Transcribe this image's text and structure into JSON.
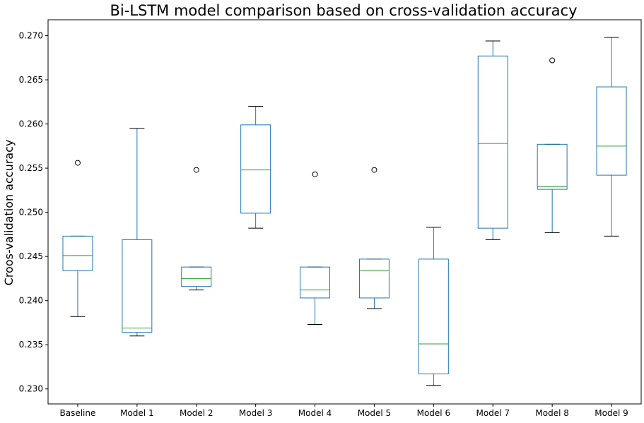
{
  "chart_data": {
    "type": "box",
    "title": "Bi-LSTM model comparison based on cross-validation accuracy",
    "xlabel": "",
    "ylabel": "Croos-validation accuracy",
    "ylim": [
      0.2283,
      0.2718
    ],
    "yticks": [
      "0.230",
      "0.235",
      "0.240",
      "0.245",
      "0.250",
      "0.255",
      "0.260",
      "0.265",
      "0.270"
    ],
    "categories": [
      "Baseline",
      "Model 1",
      "Model 2",
      "Model 3",
      "Model 4",
      "Model 5",
      "Model 6",
      "Model 7",
      "Model 8",
      "Model 9"
    ],
    "boxes": [
      {
        "whisker_low": 0.2382,
        "q1": 0.2434,
        "median": 0.2451,
        "q3": 0.2473,
        "whisker_high": 0.2473,
        "outliers": [
          0.2556
        ]
      },
      {
        "whisker_low": 0.236,
        "q1": 0.2364,
        "median": 0.2369,
        "q3": 0.2469,
        "whisker_high": 0.2595,
        "outliers": []
      },
      {
        "whisker_low": 0.2412,
        "q1": 0.2416,
        "median": 0.2425,
        "q3": 0.2438,
        "whisker_high": 0.2438,
        "outliers": [
          0.2548
        ]
      },
      {
        "whisker_low": 0.2482,
        "q1": 0.2499,
        "median": 0.2548,
        "q3": 0.2599,
        "whisker_high": 0.262,
        "outliers": []
      },
      {
        "whisker_low": 0.2373,
        "q1": 0.2403,
        "median": 0.2412,
        "q3": 0.2438,
        "whisker_high": 0.2438,
        "outliers": [
          0.2543
        ]
      },
      {
        "whisker_low": 0.2391,
        "q1": 0.2403,
        "median": 0.2434,
        "q3": 0.2447,
        "whisker_high": 0.2447,
        "outliers": [
          0.2548
        ]
      },
      {
        "whisker_low": 0.2304,
        "q1": 0.2317,
        "median": 0.2351,
        "q3": 0.2447,
        "whisker_high": 0.2483,
        "outliers": []
      },
      {
        "whisker_low": 0.2469,
        "q1": 0.2482,
        "median": 0.2578,
        "q3": 0.2677,
        "whisker_high": 0.2694,
        "outliers": []
      },
      {
        "whisker_low": 0.2477,
        "q1": 0.2526,
        "median": 0.2529,
        "q3": 0.2577,
        "whisker_high": 0.2577,
        "outliers": [
          0.2672
        ]
      },
      {
        "whisker_low": 0.2473,
        "q1": 0.2542,
        "median": 0.2575,
        "q3": 0.2642,
        "whisker_high": 0.2698,
        "outliers": []
      }
    ],
    "grid": false,
    "colors": {
      "box": "#1f77b4",
      "median": "#2ca02c",
      "whisker_cap": "#000000",
      "outlier": "#000000"
    }
  }
}
